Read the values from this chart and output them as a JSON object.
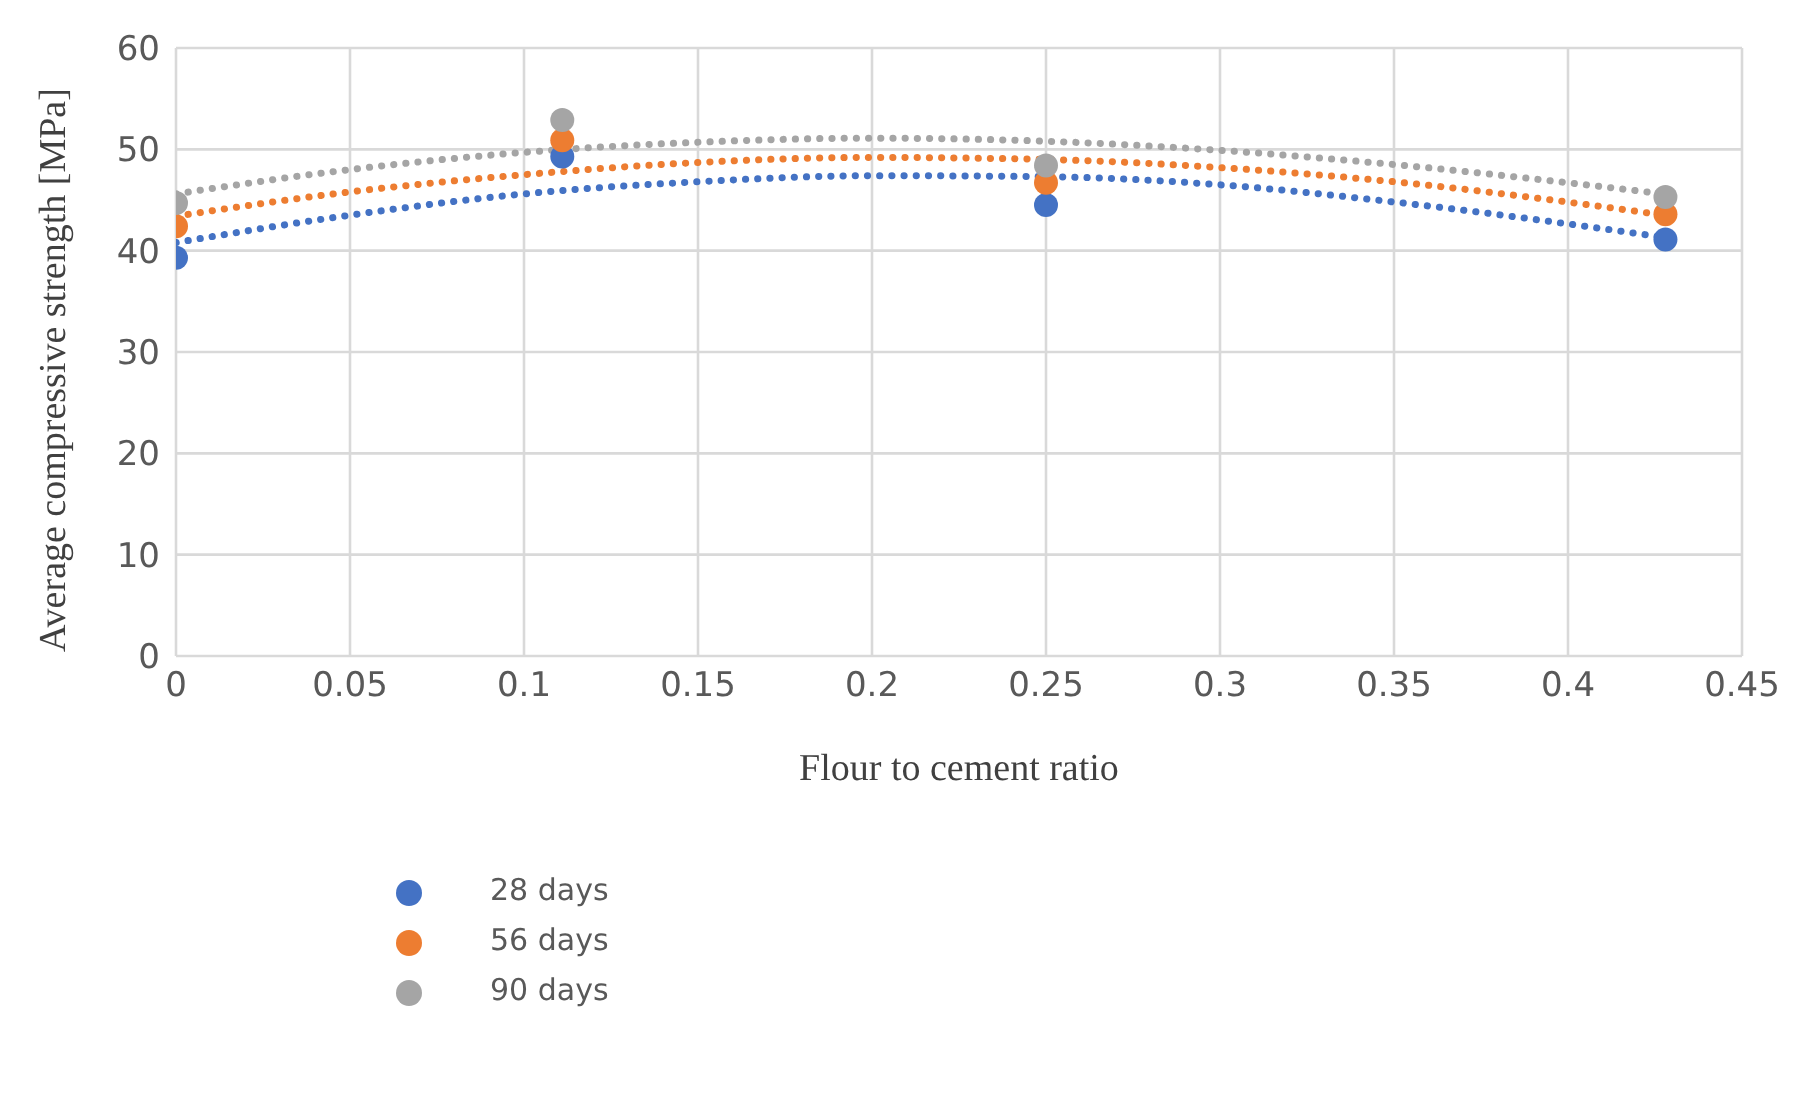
{
  "chart_data": {
    "type": "scatter",
    "xlabel": "Flour to cement ratio",
    "ylabel": "Average compressive strength [MPa]",
    "xlim": [
      0,
      0.45
    ],
    "xticks": [
      0,
      0.05,
      0.1,
      0.15,
      0.2,
      0.25,
      0.3,
      0.35,
      0.4,
      0.45
    ],
    "ylim": [
      0,
      60
    ],
    "yticks": [
      0,
      10,
      20,
      30,
      40,
      50,
      60
    ],
    "grid": true,
    "legend": "bottom",
    "marker": "circle",
    "x": [
      0,
      0.111,
      0.25,
      0.428
    ],
    "series": [
      {
        "name": "28 days",
        "color": "#4472c4",
        "values": [
          39.3,
          49.3,
          44.5,
          41.1
        ]
      },
      {
        "name": "56 days",
        "color": "#ed7d31",
        "values": [
          42.4,
          50.9,
          46.7,
          43.6
        ]
      },
      {
        "name": "90 days",
        "color": "#a5a5a5",
        "values": [
          44.7,
          52.9,
          48.4,
          45.3
        ]
      },
      {
        "type": "line",
        "color": "#4472c4",
        "line_style": "dotted",
        "marker": "none",
        "x": [
          0,
          0.05,
          0.1,
          0.15,
          0.2,
          0.25,
          0.3,
          0.35,
          0.43
        ],
        "values": [
          40.8,
          43.5,
          45.6,
          46.8,
          47.4,
          47.3,
          46.5,
          44.8,
          41.2
        ]
      },
      {
        "type": "line",
        "color": "#ed7d31",
        "line_style": "dotted",
        "marker": "none",
        "x": [
          0,
          0.05,
          0.1,
          0.15,
          0.2,
          0.25,
          0.3,
          0.35,
          0.43
        ],
        "values": [
          43.4,
          45.8,
          47.5,
          48.7,
          49.2,
          49.0,
          48.2,
          46.8,
          43.4
        ]
      },
      {
        "type": "line",
        "color": "#a5a5a5",
        "line_style": "dotted",
        "marker": "none",
        "x": [
          0,
          0.05,
          0.1,
          0.15,
          0.2,
          0.25,
          0.3,
          0.35,
          0.43
        ],
        "values": [
          45.6,
          48.0,
          49.7,
          50.7,
          51.1,
          50.8,
          49.9,
          48.5,
          45.5
        ]
      }
    ]
  }
}
